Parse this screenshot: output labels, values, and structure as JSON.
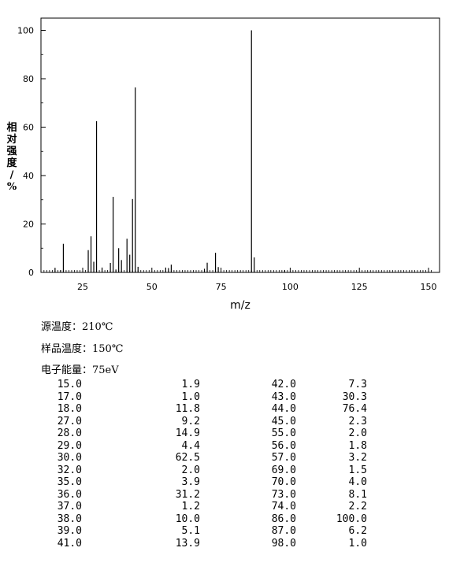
{
  "chart_data": {
    "type": "bar",
    "xlabel": "m/z",
    "ylabel": "相对强度/%",
    "xlim": [
      10,
      152
    ],
    "ylim": [
      0,
      105
    ],
    "xticks": [
      25,
      50,
      75,
      100,
      125,
      150
    ],
    "yticks": [
      0,
      20,
      40,
      60,
      80,
      100
    ],
    "bar_color": "#000000",
    "peaks": [
      [
        15.0,
        1.9
      ],
      [
        17.0,
        1.0
      ],
      [
        18.0,
        11.8
      ],
      [
        27.0,
        9.2
      ],
      [
        28.0,
        14.9
      ],
      [
        29.0,
        4.4
      ],
      [
        30.0,
        62.5
      ],
      [
        32.0,
        2.0
      ],
      [
        35.0,
        3.9
      ],
      [
        36.0,
        31.2
      ],
      [
        37.0,
        1.2
      ],
      [
        38.0,
        10.0
      ],
      [
        39.0,
        5.1
      ],
      [
        41.0,
        13.9
      ],
      [
        42.0,
        7.3
      ],
      [
        43.0,
        30.3
      ],
      [
        44.0,
        76.4
      ],
      [
        45.0,
        2.3
      ],
      [
        55.0,
        2.0
      ],
      [
        56.0,
        1.8
      ],
      [
        57.0,
        3.2
      ],
      [
        69.0,
        1.5
      ],
      [
        70.0,
        4.0
      ],
      [
        73.0,
        8.1
      ],
      [
        74.0,
        2.2
      ],
      [
        86.0,
        100.0
      ],
      [
        87.0,
        6.2
      ],
      [
        98.0,
        1.0
      ]
    ]
  },
  "conditions": {
    "source_temp": "源温度：210℃",
    "sample_temp": "样品温度：150℃",
    "electron_energy": "电子能量：75eV"
  },
  "table": {
    "rows": [
      [
        "15.0",
        "1.9",
        "42.0",
        "7.3"
      ],
      [
        "17.0",
        "1.0",
        "43.0",
        "30.3"
      ],
      [
        "18.0",
        "11.8",
        "44.0",
        "76.4"
      ],
      [
        "27.0",
        "9.2",
        "45.0",
        "2.3"
      ],
      [
        "28.0",
        "14.9",
        "55.0",
        "2.0"
      ],
      [
        "29.0",
        "4.4",
        "56.0",
        "1.8"
      ],
      [
        "30.0",
        "62.5",
        "57.0",
        "3.2"
      ],
      [
        "32.0",
        "2.0",
        "69.0",
        "1.5"
      ],
      [
        "35.0",
        "3.9",
        "70.0",
        "4.0"
      ],
      [
        "36.0",
        "31.2",
        "73.0",
        "8.1"
      ],
      [
        "37.0",
        "1.2",
        "74.0",
        "2.2"
      ],
      [
        "38.0",
        "10.0",
        "86.0",
        "100.0"
      ],
      [
        "39.0",
        "5.1",
        "87.0",
        "6.2"
      ],
      [
        "41.0",
        "13.9",
        "98.0",
        "1.0"
      ]
    ]
  }
}
